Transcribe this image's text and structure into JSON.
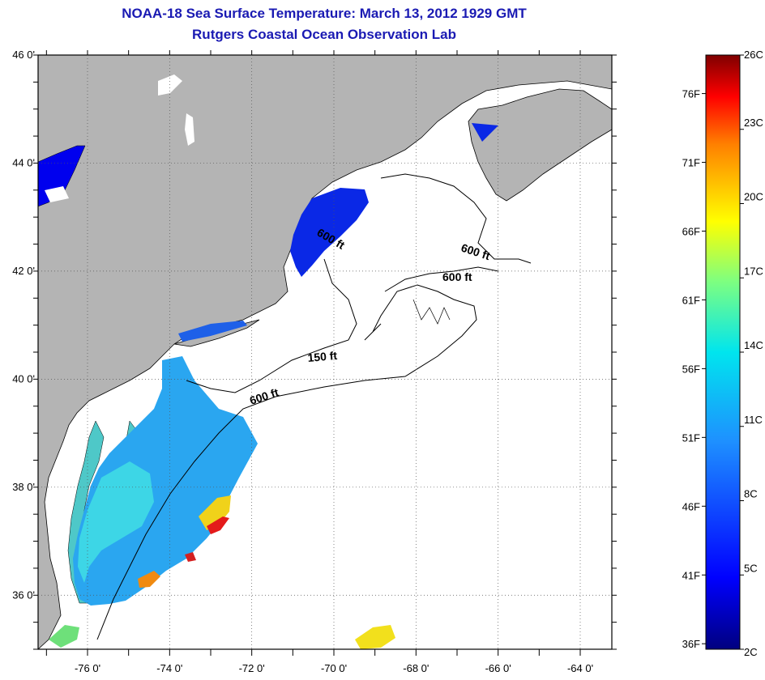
{
  "header": {
    "title": "NOAA-18 Sea Surface Temperature:  March 13, 2012 1929 GMT",
    "subtitle": "Rutgers Coastal Ocean Observation Lab"
  },
  "map": {
    "lat_ticks": [
      "46 0'",
      "44 0'",
      "42 0'",
      "40 0'",
      "38 0'",
      "36 0'"
    ],
    "lon_ticks": [
      "-76 0'",
      "-74 0'",
      "-72 0'",
      "-70 0'",
      "-68 0'",
      "-66 0'",
      "-64 0'"
    ],
    "contour_labels": [
      "600 ft",
      "600 ft",
      "600 ft",
      "150 ft",
      "600 ft"
    ],
    "colors": {
      "land": "#b4b4b4",
      "ocean": "#ffffff",
      "grid": "#555555"
    }
  },
  "colorbar": {
    "fahrenheit_labels": [
      "76F",
      "71F",
      "66F",
      "61F",
      "56F",
      "51F",
      "46F",
      "41F",
      "36F"
    ],
    "celsius_labels": [
      "26C",
      "23C",
      "20C",
      "17C",
      "14C",
      "11C",
      "8C",
      "5C",
      "2C"
    ]
  }
}
